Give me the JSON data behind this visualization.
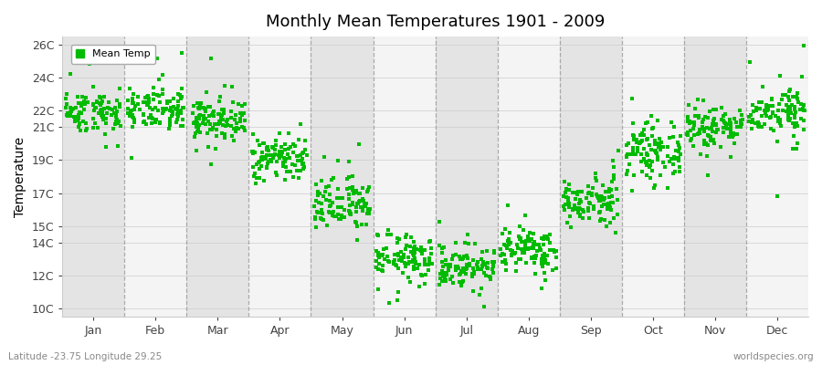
{
  "title": "Monthly Mean Temperatures 1901 - 2009",
  "ylabel": "Temperature",
  "xlabel_labels": [
    "Jan",
    "Feb",
    "Mar",
    "Apr",
    "May",
    "Jun",
    "Jul",
    "Aug",
    "Sep",
    "Oct",
    "Nov",
    "Dec"
  ],
  "ytick_labels": [
    "10C",
    "12C",
    "14C",
    "15C",
    "17C",
    "19C",
    "21C",
    "22C",
    "24C",
    "26C"
  ],
  "ytick_values": [
    10,
    12,
    14,
    15,
    17,
    19,
    21,
    22,
    24,
    26
  ],
  "ylim": [
    9.5,
    26.5
  ],
  "dot_color": "#00bb00",
  "dot_size": 5,
  "background_colors": [
    "#e8e8e8",
    "#f0f0f0"
  ],
  "grid_color": "#999999",
  "footer_left": "Latitude -23.75 Longitude 29.25",
  "footer_right": "worldspecies.org",
  "legend_label": "Mean Temp",
  "monthly_means": [
    22.0,
    22.0,
    21.5,
    19.2,
    16.2,
    13.0,
    12.5,
    13.5,
    16.5,
    19.5,
    21.0,
    22.0
  ],
  "monthly_stds": [
    0.55,
    0.55,
    0.5,
    0.55,
    0.75,
    0.6,
    0.55,
    0.6,
    0.65,
    0.65,
    0.6,
    0.6
  ],
  "monthly_extra_spread": [
    1.5,
    1.5,
    1.2,
    1.2,
    1.5,
    1.2,
    1.2,
    1.2,
    1.2,
    1.2,
    1.2,
    1.5
  ],
  "n_years": 109,
  "seed": 42,
  "figsize": [
    9.0,
    4.0
  ],
  "dpi": 100
}
